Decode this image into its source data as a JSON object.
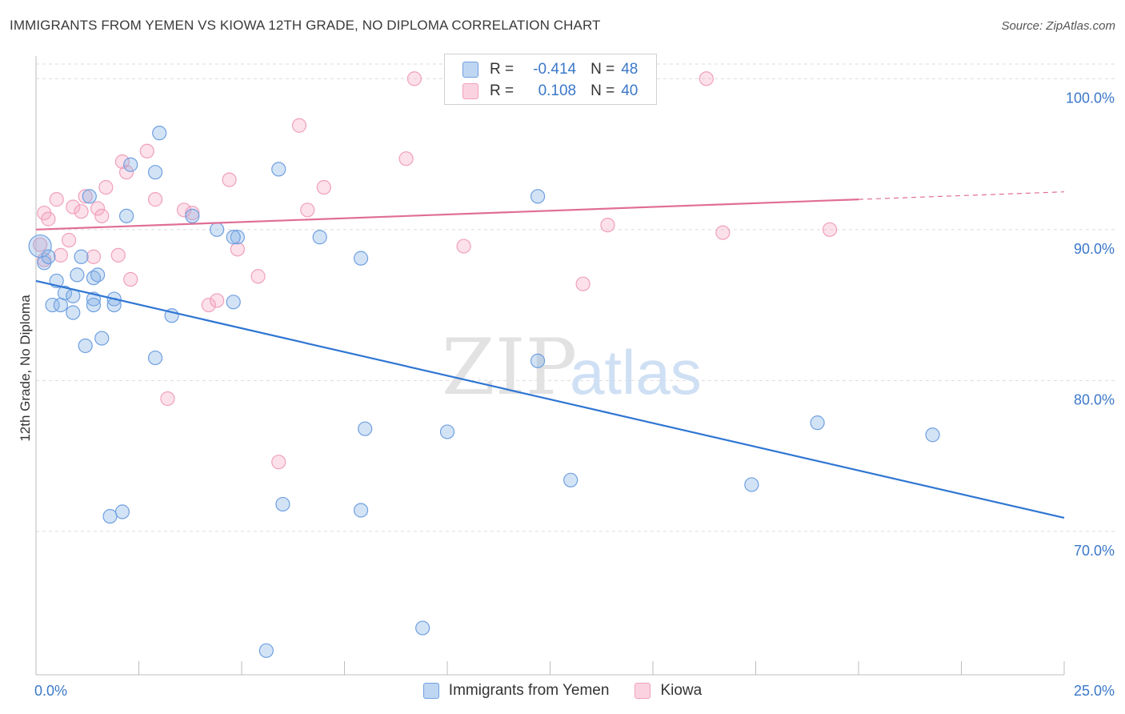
{
  "header": {
    "title": "IMMIGRANTS FROM YEMEN VS KIOWA 12TH GRADE, NO DIPLOMA CORRELATION CHART",
    "source": "Source: ZipAtlas.com"
  },
  "legend": {
    "r_label": "R =",
    "n_label": "N =",
    "series": [
      {
        "r": "-0.414",
        "n": "48"
      },
      {
        "r": "0.108",
        "n": "40"
      }
    ]
  },
  "bottom_legend": {
    "items": [
      "Immigrants from Yemen",
      "Kiowa"
    ]
  },
  "watermark": {
    "zip": "ZIP",
    "atlas": "atlas"
  },
  "chart_data": {
    "type": "scatter",
    "ylabel": "12th Grade, No Diploma",
    "xlim": [
      0,
      25
    ],
    "ylim": [
      60.5,
      101.5
    ],
    "x_tick_labels": [
      "0.0%",
      "25.0%"
    ],
    "y_ticks": [
      70,
      80,
      90,
      100
    ],
    "y_tick_labels": [
      "70.0%",
      "80.0%",
      "90.0%",
      "100.0%"
    ],
    "grid": true,
    "colors": {
      "yemen": "#6fa0e0",
      "kiowa": "#f0a0bb",
      "yemen_line": "#2f76d3",
      "kiowa_line": "#e06e96"
    },
    "series": [
      {
        "name": "Immigrants from Yemen",
        "color": "#6fa0e0",
        "trend": {
          "x0": 0.0,
          "y0": 86.6,
          "x1": 25.0,
          "y1": 70.9
        },
        "points": [
          [
            0.1,
            88.9
          ],
          [
            0.2,
            87.8
          ],
          [
            0.3,
            88.2
          ],
          [
            0.5,
            86.6
          ],
          [
            0.4,
            85.0
          ],
          [
            0.6,
            85.0
          ],
          [
            0.7,
            85.8
          ],
          [
            0.9,
            85.6
          ],
          [
            0.9,
            84.5
          ],
          [
            1.0,
            87.0
          ],
          [
            1.1,
            88.2
          ],
          [
            1.2,
            82.3
          ],
          [
            1.3,
            92.2
          ],
          [
            1.4,
            85.4
          ],
          [
            1.4,
            85.0
          ],
          [
            1.4,
            86.8
          ],
          [
            1.5,
            87.0
          ],
          [
            1.6,
            82.8
          ],
          [
            1.9,
            85.4
          ],
          [
            1.9,
            85.0
          ],
          [
            2.2,
            90.9
          ],
          [
            2.3,
            94.3
          ],
          [
            2.9,
            93.8
          ],
          [
            3.0,
            96.4
          ],
          [
            2.9,
            81.5
          ],
          [
            3.3,
            84.3
          ],
          [
            3.8,
            90.9
          ],
          [
            4.4,
            90.0
          ],
          [
            4.8,
            85.2
          ],
          [
            4.9,
            89.5
          ],
          [
            5.9,
            94.0
          ],
          [
            6.9,
            89.5
          ],
          [
            7.9,
            88.1
          ],
          [
            8.0,
            76.8
          ],
          [
            10.0,
            76.6
          ],
          [
            12.2,
            92.2
          ],
          [
            12.2,
            81.3
          ],
          [
            13.0,
            73.4
          ],
          [
            17.4,
            73.1
          ],
          [
            19.0,
            77.2
          ],
          [
            21.8,
            76.4
          ],
          [
            1.8,
            71.0
          ],
          [
            2.1,
            71.3
          ],
          [
            6.0,
            71.8
          ],
          [
            7.9,
            71.4
          ],
          [
            9.4,
            63.6
          ],
          [
            5.6,
            62.1
          ],
          [
            4.8,
            89.5
          ]
        ]
      },
      {
        "name": "Kiowa",
        "color": "#f0a0bb",
        "trend": {
          "x0": 0.0,
          "y0": 90.0,
          "x1": 20.0,
          "y1": 92.0,
          "x_dash_end": 25.0,
          "y_dash_end": 92.5
        },
        "points": [
          [
            0.1,
            89.0
          ],
          [
            0.2,
            88.0
          ],
          [
            0.2,
            91.1
          ],
          [
            0.3,
            90.7
          ],
          [
            0.5,
            92.0
          ],
          [
            0.6,
            88.3
          ],
          [
            0.8,
            89.3
          ],
          [
            0.9,
            91.5
          ],
          [
            1.1,
            91.2
          ],
          [
            1.2,
            92.2
          ],
          [
            1.4,
            88.2
          ],
          [
            1.5,
            91.4
          ],
          [
            1.6,
            90.9
          ],
          [
            1.7,
            92.8
          ],
          [
            2.0,
            88.3
          ],
          [
            2.1,
            94.5
          ],
          [
            2.2,
            93.8
          ],
          [
            2.3,
            86.7
          ],
          [
            2.7,
            95.2
          ],
          [
            2.9,
            92.0
          ],
          [
            3.2,
            78.8
          ],
          [
            3.6,
            91.3
          ],
          [
            3.8,
            91.1
          ],
          [
            4.2,
            85.0
          ],
          [
            4.4,
            85.3
          ],
          [
            4.7,
            93.3
          ],
          [
            4.9,
            88.7
          ],
          [
            5.4,
            86.9
          ],
          [
            5.9,
            74.6
          ],
          [
            6.4,
            96.9
          ],
          [
            6.6,
            91.3
          ],
          [
            7.0,
            92.8
          ],
          [
            9.0,
            94.7
          ],
          [
            9.2,
            100.0
          ],
          [
            10.4,
            88.9
          ],
          [
            13.3,
            86.4
          ],
          [
            13.9,
            90.3
          ],
          [
            16.3,
            100.0
          ],
          [
            16.7,
            89.8
          ],
          [
            19.3,
            90.0
          ]
        ]
      }
    ]
  }
}
